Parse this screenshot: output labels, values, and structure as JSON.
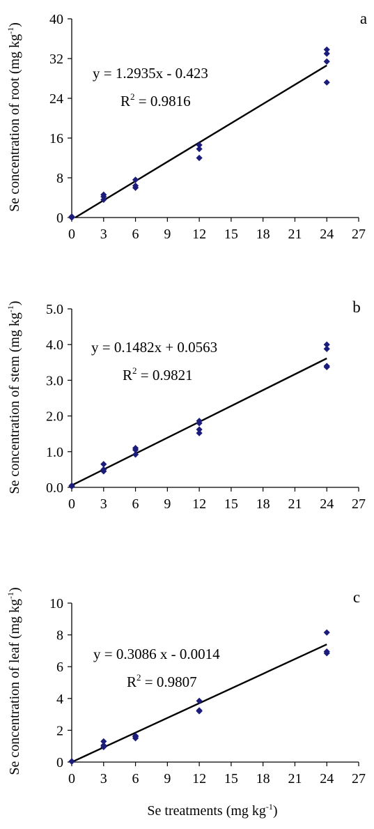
{
  "chart_data": [
    {
      "type": "scatter",
      "panel_label": "a",
      "ylabel": "Se concentration of root (mg kg-1)",
      "ylabel_parts": {
        "main": "Se concentration of root (mg kg",
        "sup": "-1",
        "tail": ")"
      },
      "xlim": [
        0,
        27
      ],
      "ylim": [
        0,
        40
      ],
      "xticks": [
        0,
        3,
        6,
        9,
        12,
        15,
        18,
        21,
        24,
        27
      ],
      "yticks": [
        0,
        8,
        16,
        24,
        32,
        40
      ],
      "ytick_labels": [
        "0",
        "8",
        "16",
        "24",
        "32",
        "40"
      ],
      "x": [
        0,
        0,
        3,
        3,
        3,
        6,
        6,
        6,
        12,
        12,
        12,
        24,
        24,
        24,
        24
      ],
      "y": [
        0,
        0.2,
        3.6,
        4.2,
        4.6,
        6.0,
        6.4,
        7.6,
        12.0,
        13.8,
        14.6,
        27.2,
        31.4,
        33.0,
        33.8
      ],
      "marker_color": "#1c1c7a",
      "trendline": {
        "slope": 1.2935,
        "intercept": -0.423,
        "x_range": [
          0.33,
          24
        ]
      },
      "equation_text": "y = 1.2935x - 0.423",
      "r2_text": {
        "main": "R",
        "sup": "2",
        "tail": " = 0.9816"
      }
    },
    {
      "type": "scatter",
      "panel_label": "b",
      "ylabel": "Se concentration of stem (mg kg-1)",
      "ylabel_parts": {
        "main": "Se concentration of stem (mg kg",
        "sup": "-1",
        "tail": ")"
      },
      "xlim": [
        0,
        27
      ],
      "ylim": [
        0,
        5
      ],
      "xticks": [
        0,
        3,
        6,
        9,
        12,
        15,
        18,
        21,
        24,
        27
      ],
      "yticks": [
        0,
        1,
        2,
        3,
        4,
        5
      ],
      "ytick_labels": [
        "0.0",
        "1.0",
        "2.0",
        "3.0",
        "4.0",
        "5.0"
      ],
      "x": [
        0,
        0,
        3,
        3,
        3,
        6,
        6,
        6,
        12,
        12,
        12,
        12,
        24,
        24,
        24,
        24
      ],
      "y": [
        0.03,
        0.05,
        0.45,
        0.5,
        0.65,
        0.92,
        1.05,
        1.1,
        1.52,
        1.62,
        1.8,
        1.86,
        3.37,
        3.4,
        3.88,
        4.0
      ],
      "marker_color": "#1c1c7a",
      "trendline": {
        "slope": 0.1482,
        "intercept": 0.0563,
        "x_range": [
          0,
          24
        ]
      },
      "equation_text": "y = 0.1482x + 0.0563",
      "r2_text": {
        "main": "R",
        "sup": "2",
        "tail": " = 0.9821"
      }
    },
    {
      "type": "scatter",
      "panel_label": "c",
      "ylabel": "Se concentration of leaf (mg kg-1)",
      "ylabel_parts": {
        "main": "Se concentration of leaf (mg kg",
        "sup": "-1",
        "tail": ")"
      },
      "xlabel": "Se treatments (mg kg-1)",
      "xlabel_parts": {
        "main": "Se treatments (mg kg",
        "sup": "-1",
        "tail": ")"
      },
      "xlim": [
        0,
        27
      ],
      "ylim": [
        0,
        10
      ],
      "xticks": [
        0,
        3,
        6,
        9,
        12,
        15,
        18,
        21,
        24,
        27
      ],
      "yticks": [
        0,
        2,
        4,
        6,
        8,
        10
      ],
      "ytick_labels": [
        "0",
        "2",
        "4",
        "6",
        "8",
        "10"
      ],
      "x": [
        0,
        0,
        3,
        3,
        3,
        6,
        6,
        6,
        12,
        12,
        12,
        24,
        24,
        24
      ],
      "y": [
        0.03,
        0.05,
        0.95,
        1.05,
        1.3,
        1.5,
        1.6,
        1.65,
        3.2,
        3.25,
        3.85,
        6.85,
        6.95,
        8.15
      ],
      "marker_color": "#1c1c7a",
      "trendline": {
        "slope": 0.3086,
        "intercept": -0.0014,
        "x_range": [
          0,
          24
        ]
      },
      "equation_text": "y = 0.3086 x - 0.0014",
      "r2_text": {
        "main": "R",
        "sup": "2",
        "tail": " = 0.9807"
      }
    }
  ]
}
